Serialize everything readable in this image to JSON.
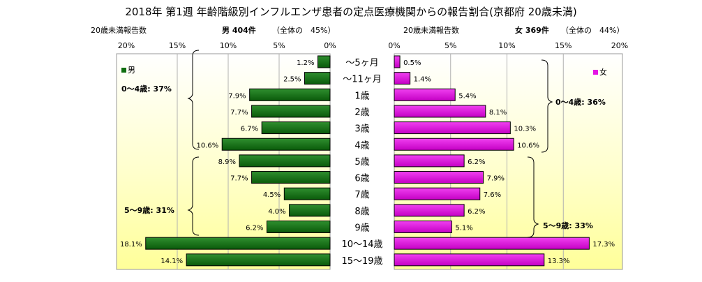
{
  "title": "2018年 第1週 年齢階級別インフルエンザ患者の定点医療機関からの報告割合(京都府 20歳未満)",
  "colors": {
    "male_bar": "#0f6e0f",
    "female_bar": "#e414e4",
    "bg_light": "#ffffee",
    "bg_yellow": "#ffff99"
  },
  "chart_data": [
    {
      "type": "bar",
      "orientation": "horizontal",
      "header_left": "20歳未満報告数",
      "header_count": "男 404件",
      "header_share": "（全体の　45%）",
      "legend": "男",
      "xlim": [
        0,
        20
      ],
      "x_reversed": true,
      "tick_labels": [
        "20%",
        "15%",
        "10%",
        "5%",
        "0%"
      ],
      "categories": [
        "～5ヶ月",
        "～11ヶ月",
        "1歳",
        "2歳",
        "3歳",
        "4歳",
        "5歳",
        "6歳",
        "7歳",
        "8歳",
        "9歳",
        "10～14歳",
        "15～19歳"
      ],
      "values": [
        1.2,
        2.5,
        7.9,
        7.7,
        6.7,
        10.6,
        8.9,
        7.7,
        4.5,
        4.0,
        6.2,
        18.1,
        14.1
      ],
      "value_labels": [
        "1.2%",
        "2.5%",
        "7.9%",
        "7.7%",
        "6.7%",
        "10.6%",
        "8.9%",
        "7.7%",
        "4.5%",
        "4.0%",
        "6.2%",
        "18.1%",
        "14.1%"
      ],
      "annotations": [
        "0～4歳: 37%",
        "5～9歳: 31%"
      ]
    },
    {
      "type": "bar",
      "orientation": "horizontal",
      "header_left": "20歳未満報告数",
      "header_count": "女 369件",
      "header_share": "（全体の　44%）",
      "legend": "女",
      "xlim": [
        0,
        20
      ],
      "x_reversed": false,
      "tick_labels": [
        "0%",
        "5%",
        "10%",
        "15%",
        "20%"
      ],
      "categories": [
        "～5ヶ月",
        "～11ヶ月",
        "1歳",
        "2歳",
        "3歳",
        "4歳",
        "5歳",
        "6歳",
        "7歳",
        "8歳",
        "9歳",
        "10～14歳",
        "15～19歳"
      ],
      "values": [
        0.5,
        1.4,
        5.4,
        8.1,
        10.3,
        10.6,
        6.2,
        7.9,
        7.6,
        6.2,
        5.1,
        17.3,
        13.3
      ],
      "value_labels": [
        "0.5%",
        "1.4%",
        "5.4%",
        "8.1%",
        "10.3%",
        "10.6%",
        "6.2%",
        "7.9%",
        "7.6%",
        "6.2%",
        "5.1%",
        "17.3%",
        "13.3%"
      ],
      "annotations": [
        "0～4歳: 36%",
        "5～9歳: 33%"
      ]
    }
  ]
}
